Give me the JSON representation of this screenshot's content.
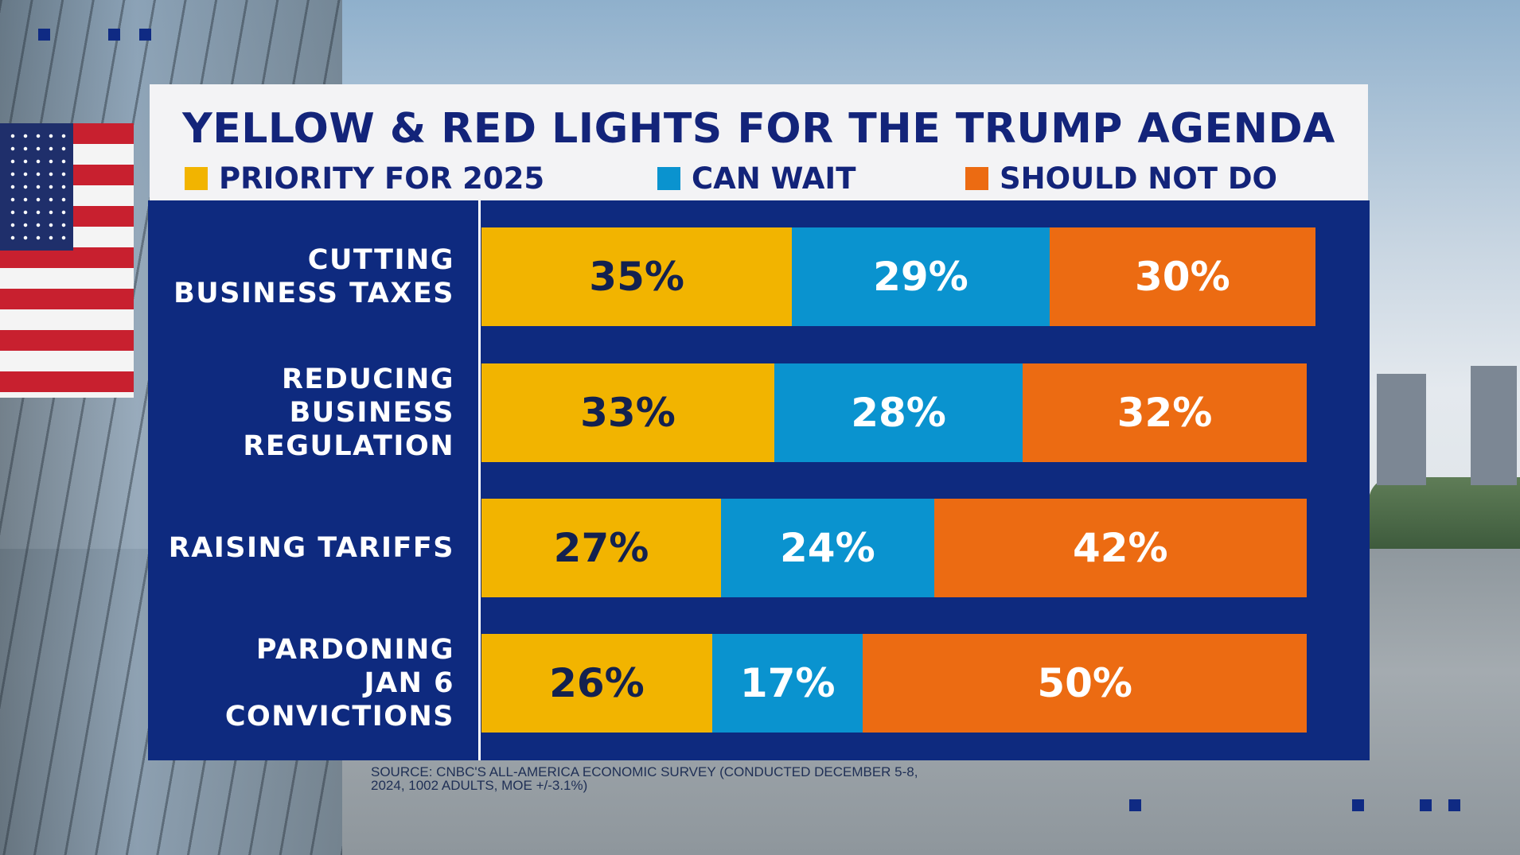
{
  "chart_data": {
    "type": "bar",
    "orientation": "horizontal",
    "stacked": true,
    "title": "YELLOW & RED LIGHTS FOR THE TRUMP AGENDA",
    "categories": [
      "CUTTING\nBUSINESS TAXES",
      "REDUCING\nBUSINESS\nREGULATION",
      "RAISING TARIFFS",
      "PARDONING\nJAN 6\nCONVICTIONS"
    ],
    "series": [
      {
        "name": "PRIORITY FOR 2025",
        "values": [
          35,
          33,
          27,
          26
        ],
        "labels": [
          "35%",
          "33%",
          "27%",
          "26%"
        ],
        "color": "#f2b400"
      },
      {
        "name": "CAN WAIT",
        "values": [
          29,
          28,
          24,
          17
        ],
        "labels": [
          "29%",
          "28%",
          "24%",
          "17%"
        ],
        "color": "#0a93cf"
      },
      {
        "name": "SHOULD NOT DO",
        "values": [
          30,
          32,
          42,
          50
        ],
        "labels": [
          "30%",
          "32%",
          "42%",
          "50%"
        ],
        "color": "#ec6b12"
      }
    ],
    "value_unit": "%",
    "legend": "top",
    "grid": false
  },
  "source_text": "SOURCE: CNBC'S ALL-AMERICA ECONOMIC SURVEY (CONDUCTED DECEMBER 5-8, 2024, 1002 ADULTS, MOE +/-3.1%)",
  "colors": {
    "panel_bg": "#0e2a7f",
    "title_color": "#13247a",
    "title_card_bg": "#f3f3f5"
  }
}
